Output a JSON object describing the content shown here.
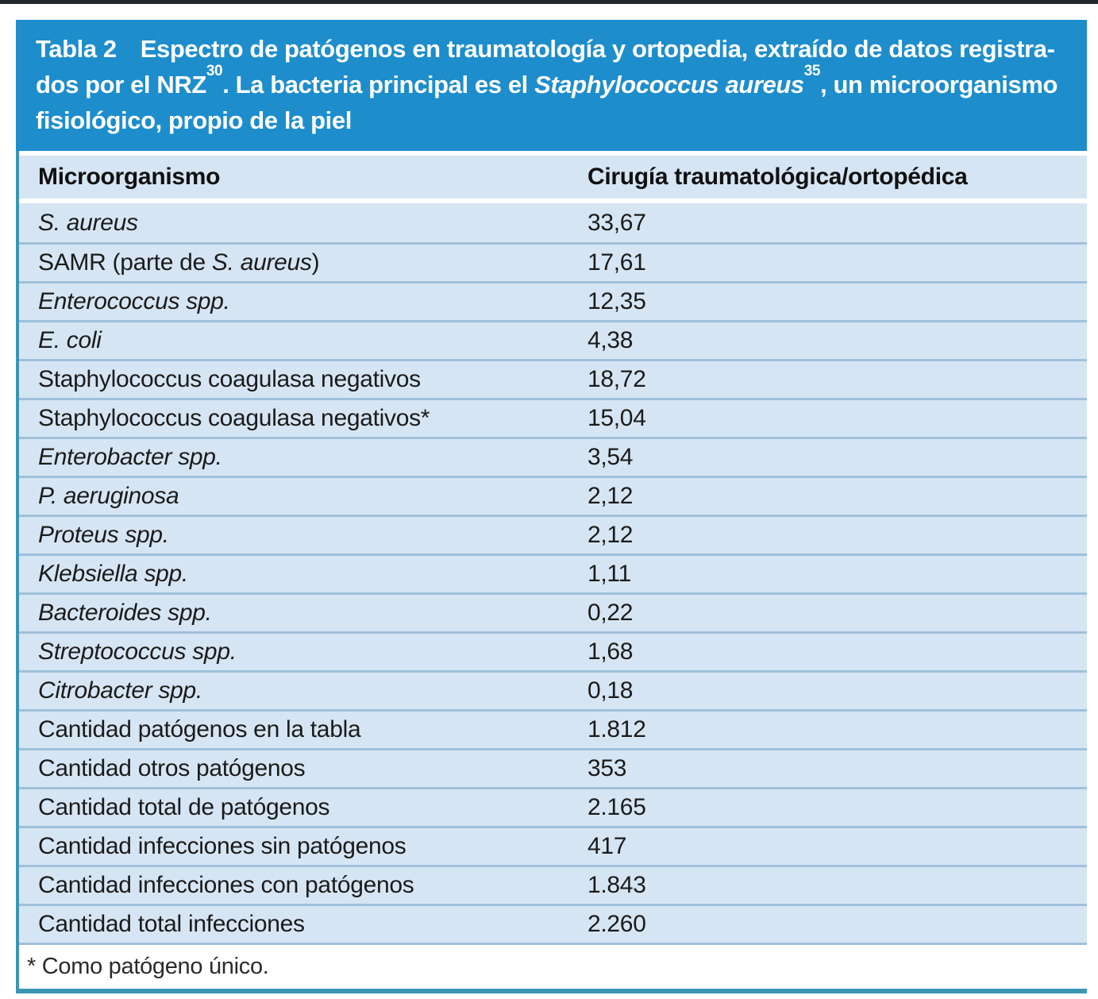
{
  "colors": {
    "top_rule": "#25282a",
    "title_bar_blue": "#1d8dcc",
    "body_light_blue": "#d6e5f3",
    "row_divider_blue": "#9fc0dc",
    "accent_teal": "#3997b3",
    "title_text": "#ffffff",
    "body_text": "#1b1b1b"
  },
  "header": {
    "lines": [
      [
        {
          "text": "Tabla 2",
          "label": true
        },
        {
          "text": "Espectro de patógenos en traumatología y ortopedia, extraído de datos registra-"
        }
      ],
      [
        {
          "text": "dos por el NRZ"
        },
        {
          "text": "30",
          "sup": true
        },
        {
          "text": ". La bacteria principal es el "
        },
        {
          "text": "Staphylococcus aureus",
          "italic": true
        },
        {
          "text": "35",
          "sup": true
        },
        {
          "text": ", un microorganismo"
        }
      ],
      [
        {
          "text": "fisiológico, propio de la piel"
        }
      ]
    ]
  },
  "table": {
    "columns": [
      "Microorganismo",
      "Cirugía traumatológica/ortopédica"
    ],
    "rows": [
      {
        "label_parts": [
          {
            "text": "S. aureus",
            "italic": true
          }
        ],
        "value": "33,67"
      },
      {
        "label_parts": [
          {
            "text": "SAMR (parte de "
          },
          {
            "text": "S. aureus",
            "italic": true
          },
          {
            "text": ")"
          }
        ],
        "value": "17,61"
      },
      {
        "label_parts": [
          {
            "text": "Enterococcus spp.",
            "italic": true
          }
        ],
        "value": "12,35"
      },
      {
        "label_parts": [
          {
            "text": "E. coli",
            "italic": true
          }
        ],
        "value": "4,38"
      },
      {
        "label_parts": [
          {
            "text": "Staphylococcus coagulasa negativos"
          }
        ],
        "value": "18,72"
      },
      {
        "label_parts": [
          {
            "text": "Staphylococcus coagulasa negativos*"
          }
        ],
        "value": "15,04"
      },
      {
        "label_parts": [
          {
            "text": "Enterobacter spp.",
            "italic": true
          }
        ],
        "value": "3,54"
      },
      {
        "label_parts": [
          {
            "text": "P. aeruginosa",
            "italic": true
          }
        ],
        "value": "2,12"
      },
      {
        "label_parts": [
          {
            "text": "Proteus spp.",
            "italic": true
          }
        ],
        "value": "2,12"
      },
      {
        "label_parts": [
          {
            "text": "Klebsiella spp.",
            "italic": true
          }
        ],
        "value": "1,11"
      },
      {
        "label_parts": [
          {
            "text": "Bacteroides spp.",
            "italic": true
          }
        ],
        "value": "0,22"
      },
      {
        "label_parts": [
          {
            "text": "Streptococcus spp.",
            "italic": true
          }
        ],
        "value": "1,68"
      },
      {
        "label_parts": [
          {
            "text": "Citrobacter spp.",
            "italic": true
          }
        ],
        "value": "0,18"
      },
      {
        "label_parts": [
          {
            "text": "Cantidad patógenos en la tabla"
          }
        ],
        "value": "1.812"
      },
      {
        "label_parts": [
          {
            "text": "Cantidad otros patógenos"
          }
        ],
        "value": "353"
      },
      {
        "label_parts": [
          {
            "text": "Cantidad total de patógenos"
          }
        ],
        "value": "2.165"
      },
      {
        "label_parts": [
          {
            "text": "Cantidad infecciones sin patógenos"
          }
        ],
        "value": "417"
      },
      {
        "label_parts": [
          {
            "text": "Cantidad infecciones con patógenos"
          }
        ],
        "value": "1.843"
      },
      {
        "label_parts": [
          {
            "text": "Cantidad total infecciones"
          }
        ],
        "value": "2.260"
      }
    ]
  },
  "footnote": {
    "text": "* Como patógeno único."
  },
  "chart_data": {
    "type": "table",
    "title": "Tabla 2 Espectro de patógenos en traumatología y ortopedia, extraído de datos registrados por el NRZ30. La bacteria principal es el Staphylococcus aureus35, un microorganismo fisiológico, propio de la piel",
    "columns": [
      "Microorganismo",
      "Cirugía traumatológica/ortopédica"
    ],
    "rows": [
      [
        "S. aureus",
        "33,67"
      ],
      [
        "SAMR (parte de S. aureus)",
        "17,61"
      ],
      [
        "Enterococcus spp.",
        "12,35"
      ],
      [
        "E. coli",
        "4,38"
      ],
      [
        "Staphylococcus coagulasa negativos",
        "18,72"
      ],
      [
        "Staphylococcus coagulasa negativos*",
        "15,04"
      ],
      [
        "Enterobacter spp.",
        "3,54"
      ],
      [
        "P. aeruginosa",
        "2,12"
      ],
      [
        "Proteus spp.",
        "2,12"
      ],
      [
        "Klebsiella spp.",
        "1,11"
      ],
      [
        "Bacteroides spp.",
        "0,22"
      ],
      [
        "Streptococcus spp.",
        "1,68"
      ],
      [
        "Citrobacter spp.",
        "0,18"
      ],
      [
        "Cantidad patógenos en la tabla",
        "1.812"
      ],
      [
        "Cantidad otros patógenos",
        "353"
      ],
      [
        "Cantidad total de patógenos",
        "2.165"
      ],
      [
        "Cantidad infecciones sin patógenos",
        "417"
      ],
      [
        "Cantidad infecciones con patógenos",
        "1.843"
      ],
      [
        "Cantidad total infecciones",
        "2.260"
      ]
    ],
    "footnote": "* Como patógeno único."
  }
}
